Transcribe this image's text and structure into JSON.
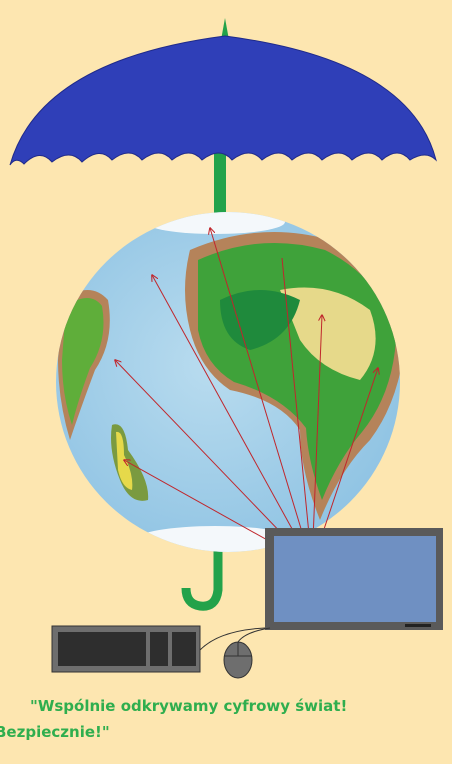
{
  "slogan": {
    "line1": "\"Wspólnie odkrywamy cyfrowy świat!",
    "line2": "Bezpiecznie!\""
  }
}
